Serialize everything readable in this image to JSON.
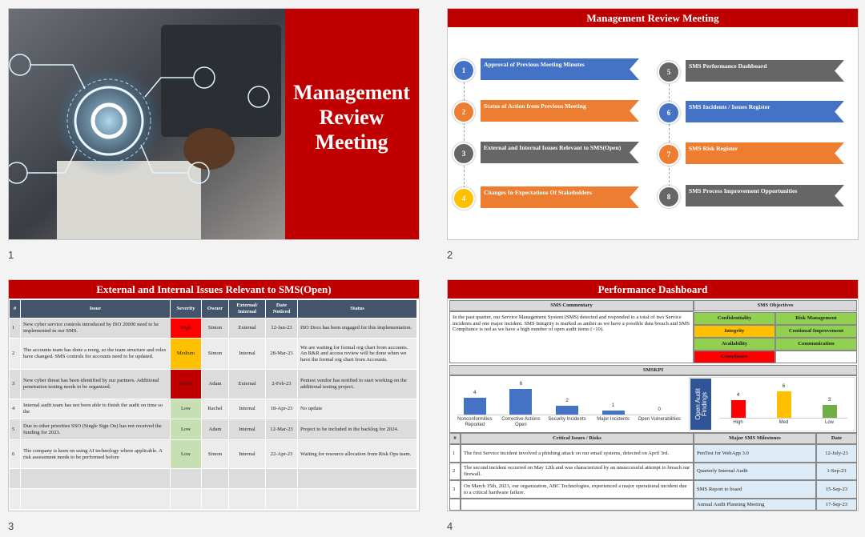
{
  "slide_numbers": [
    1,
    2,
    3,
    4
  ],
  "slide1": {
    "title": "Management Review Meeting"
  },
  "slide2": {
    "title": "Management Review Meeting",
    "items": [
      {
        "number": 1,
        "label": "Approval of Previous Meeting Minutes",
        "circle_color": "#4472c4",
        "banner_color": "#4472c4"
      },
      {
        "number": 2,
        "label": "Status of Action from Previous Meeting",
        "circle_color": "#ed7d31",
        "banner_color": "#ed7d31"
      },
      {
        "number": 3,
        "label": "External and Internal Issues Relevant to SMS(Open)",
        "circle_color": "#666666",
        "banner_color": "#666666"
      },
      {
        "number": 4,
        "label": "Changes In Expectations Of Stakeholders",
        "circle_color": "#ffc000",
        "banner_color": "#ed7d31"
      },
      {
        "number": 5,
        "label": "SMS Performance Dashboard",
        "circle_color": "#666666",
        "banner_color": "#666666"
      },
      {
        "number": 6,
        "label": "SMS Incidents / Issues Register",
        "circle_color": "#4472c4",
        "banner_color": "#4472c4"
      },
      {
        "number": 7,
        "label": "SMS Risk Register",
        "circle_color": "#ed7d31",
        "banner_color": "#ed7d31"
      },
      {
        "number": 8,
        "label": "SMS Process Improvement Opportunities",
        "circle_color": "#666666",
        "banner_color": "#666666"
      }
    ]
  },
  "slide3": {
    "title": "External and Internal Issues Relevant to SMS(Open)",
    "columns": [
      "#",
      "Issue",
      "Severity",
      "Owner",
      "External/ Internal",
      "Date Noticed",
      "Status"
    ],
    "rows": [
      {
        "num": 1,
        "issue": "New cyber service  controls introduced by ISO 20000 need to be implemented in our SMS.",
        "severity": "High",
        "severity_color": "#ff0000",
        "owner": "Simon",
        "type": "External",
        "date": "12-Jan-23",
        "status": "ISO Docs has been engaged for this implementation."
      },
      {
        "num": 2,
        "issue": "The accounts team has done a reorg, so the team structure and roles have changed. SMS controls for accounts need to be updated.",
        "severity": "Medium",
        "severity_color": "#ffc000",
        "owner": "Simon",
        "type": "Internal",
        "date": "28-Mar-23",
        "status": "We are waiting for formal org chart from accounts. An R&R and access review will be done when we have the formal org chart from Accounts."
      },
      {
        "num": 3,
        "issue": "New cyber threat has been identified by our partners. Additional penetration testing needs to be organized.",
        "severity": "Severe",
        "severity_color": "#c00000",
        "owner": "Adam",
        "type": "External",
        "date": "2-Feb-23",
        "status": "Pentest vendor has notified to start working on the additional testing project."
      },
      {
        "num": 4,
        "issue": "Internal audit team has not been able to finish the audit on time so the",
        "severity": "Low",
        "severity_color": "#c6e0b4",
        "owner": "Rachel",
        "type": "Internal",
        "date": "18-Apr-23",
        "status": "No update"
      },
      {
        "num": 5,
        "issue": "Due to other priorities SSO (Single Sign On) has not received the funding for 2023.",
        "severity": "Low",
        "severity_color": "#c6e0b4",
        "owner": "Adam",
        "type": "Internal",
        "date": "12-Mar-23",
        "status": "Project to be included in the backlog for 2024."
      },
      {
        "num": 6,
        "issue": "The company is keen on using AI technology where applicable. A risk assessment needs to be performed before",
        "severity": "Low",
        "severity_color": "#c6e0b4",
        "owner": "Simon",
        "type": "Internal",
        "date": "22-Apr-23",
        "status": "Waiting for resource allocation from Risk Ops team."
      }
    ]
  },
  "slide4": {
    "title": "Performance Dashboard",
    "commentary_title": "SMS Commentary",
    "commentary": "In the past quarter, our Service  Management System (SMS) detected and responded to a total of two Service incidents and one major incident. SMS Integrity is marked as amber as we have a possible data breach and SMS Compliance is red as we have a high number of open audit items (>10).",
    "objectives_title": "SMS Objectives",
    "objectives": [
      {
        "label": "Confidentiality",
        "color": "#92d050"
      },
      {
        "label": "Risk Management",
        "color": "#92d050"
      },
      {
        "label": "Integrity",
        "color": "#ffc000"
      },
      {
        "label": "Continual Improvement",
        "color": "#92d050"
      },
      {
        "label": "Availability",
        "color": "#92d050"
      },
      {
        "label": "Communication",
        "color": "#92d050"
      },
      {
        "label": "Compliance",
        "color": "#ff0000"
      }
    ],
    "kpi_title": "SMSKPI",
    "chart_data": [
      {
        "type": "bar",
        "categories": [
          "Nonconformities Reported",
          "Corrective Actions Open",
          "Security Incidents",
          "Major Incidents",
          "Open Vulnerabilities"
        ],
        "values": [
          4,
          6,
          2,
          1,
          0
        ],
        "color": "#4472c4"
      },
      {
        "type": "bar",
        "y_label": "Open Audit Findings",
        "categories": [
          "High",
          "Med",
          "Low"
        ],
        "values": [
          4,
          6,
          3
        ],
        "colors": [
          "#ff0000",
          "#ffc000",
          "#70ad47"
        ]
      }
    ],
    "risk_columns": [
      "#",
      "Critical Issues / Risks",
      "Major SMS Milestones",
      "Date"
    ],
    "risks": [
      {
        "num": 1,
        "text": "The first Service incident involved a phishing attack on our email systems, detected on April 3rd."
      },
      {
        "num": 2,
        "text": "The second incident occurred on May 12th and was characterized by an unsuccessful attempt to breach our firewall."
      },
      {
        "num": 3,
        "text": "On March 15th, 2023, our organization, ABC Technologies, experienced a major operational incident due to a critical hardware failure."
      }
    ],
    "milestones": [
      {
        "label": "PenTest for WebApp 3.0",
        "date": "12-July-23"
      },
      {
        "label": "Quarterly Internal Audit",
        "date": "1-Sep-23"
      },
      {
        "label": "SMS Report to board",
        "date": "15-Sep-23"
      },
      {
        "label": "Annual Audit Planning Meeting",
        "date": "17-Sep-23"
      }
    ]
  }
}
